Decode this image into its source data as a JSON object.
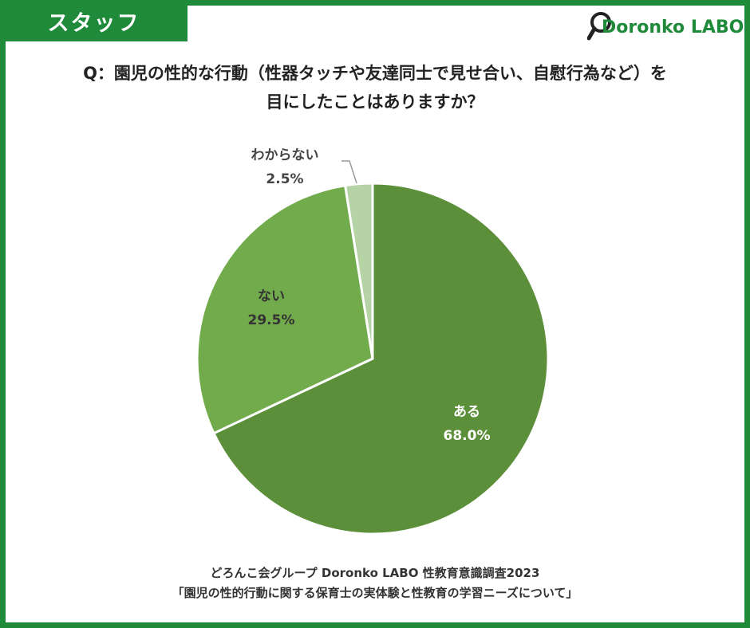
{
  "header": {
    "tag_label": "スタッフ",
    "logo_text": "Doronko LABO"
  },
  "question": {
    "line1": "Q：園児の性的な行動（性器タッチや友達同士で見せ合い、自慰行為など）を",
    "line2": "目にしたことはありますか？"
  },
  "chart_data": {
    "type": "pie",
    "title": "Q：園児の性的な行動（性器タッチや友達同士で見せ合い、自慰行為など）を目にしたことはありますか？",
    "slices": [
      {
        "label": "ある",
        "value": 68.0,
        "value_label": "68.0%",
        "color": "#5b8f3a"
      },
      {
        "label": "ない",
        "value": 29.5,
        "value_label": "29.5%",
        "color": "#72ab4b"
      },
      {
        "label": "わからない",
        "value": 2.5,
        "value_label": "2.5%",
        "color": "#b6d3a5"
      }
    ]
  },
  "footer": {
    "line1": "どろんこ会グループ Doronko LABO 性教育意識調査2023",
    "line2": "「園児の性的行動に関する保育士の実体験と性教育の学習ニーズについて」"
  },
  "colors": {
    "brand": "#1e8a3a"
  }
}
